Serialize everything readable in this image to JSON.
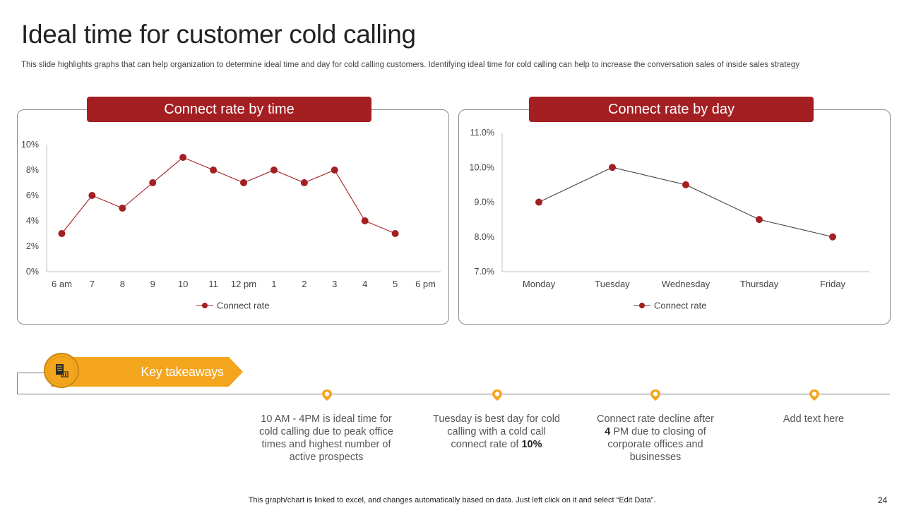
{
  "header": {
    "title": "Ideal time for customer cold calling",
    "subtitle": "This slide highlights graphs that can help organization to determine ideal time and day for  cold calling customers. Identifying ideal time for cold calling can help to increase the conversation sales of inside sales strategy"
  },
  "chart_data": [
    {
      "type": "line",
      "title": "Connect rate by time",
      "categories": [
        "6 am",
        "7",
        "8",
        "9",
        "10",
        "11",
        "12 pm",
        "1",
        "2",
        "3",
        "4",
        "5",
        "6 pm"
      ],
      "series": [
        {
          "name": "Connect rate",
          "values": [
            3,
            6,
            5,
            7,
            9,
            8,
            7,
            8,
            7,
            8,
            4,
            3,
            null
          ]
        }
      ],
      "ylim": [
        0,
        10
      ],
      "yticks": [
        "0%",
        "2%",
        "4%",
        "6%",
        "8%",
        "10%"
      ],
      "y_unit": "%",
      "legend": "bottom",
      "grid": false,
      "color": "#a31f22"
    },
    {
      "type": "line",
      "title": "Connect rate by day",
      "categories": [
        "Monday",
        "Tuesday",
        "Wednesday",
        "Thursday",
        "Friday"
      ],
      "series": [
        {
          "name": "Connect rate",
          "values": [
            9.0,
            10.0,
            9.5,
            8.5,
            8.0
          ]
        }
      ],
      "ylim": [
        7,
        11
      ],
      "yticks": [
        "7.0%",
        "8.0%",
        "9.0%",
        "10.0%",
        "11.0%"
      ],
      "y_unit": "%",
      "legend": "bottom",
      "grid": false,
      "color": "#a31f22",
      "line_color": "#404040"
    }
  ],
  "takeaways": {
    "banner_label": "Key takeaways",
    "items": [
      {
        "pre": "10 AM - 4PM is ideal time for cold calling due to peak office times and highest number of active prospects",
        "bold": "",
        "post": ""
      },
      {
        "pre": "Tuesday is best day for cold calling with a cold call connect rate of ",
        "bold": "10%",
        "post": ""
      },
      {
        "pre": "Connect rate decline after ",
        "bold": "4",
        "post": " PM due to closing of corporate offices and businesses"
      },
      {
        "pre": "Add text here",
        "bold": "",
        "post": ""
      }
    ]
  },
  "footer": {
    "note": "This graph/chart is linked to excel,  and changes automatically based on data. Just left click on it and select “Edit Data”.",
    "page_number": "24"
  },
  "colors": {
    "accent_red": "#a31f22",
    "accent_orange": "#f3a51e"
  },
  "icons": {
    "takeaway_icon": "document-chart-icon",
    "timeline_marker": "map-pin-icon"
  }
}
